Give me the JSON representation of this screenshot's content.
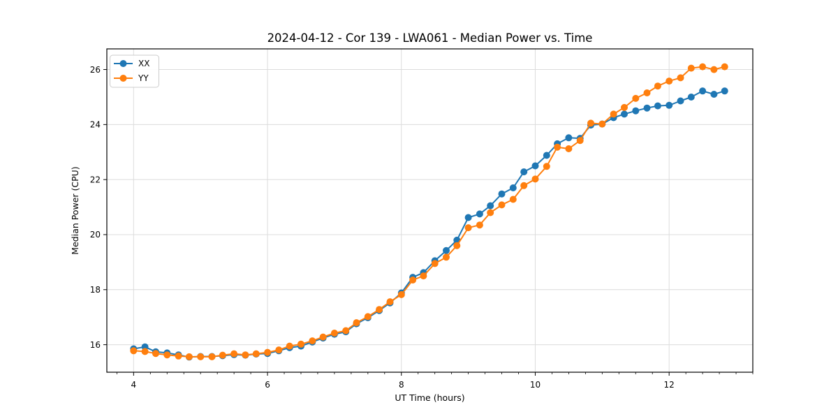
{
  "chart_data": {
    "type": "line",
    "title": "2024-04-12 - Cor 139 - LWA061 - Median Power vs. Time",
    "xlabel": "UT Time (hours)",
    "ylabel": "Median Power (CPU)",
    "xlim": [
      3.6,
      13.25
    ],
    "ylim": [
      15.0,
      26.75
    ],
    "xticks": [
      4,
      6,
      8,
      10,
      12
    ],
    "yticks": [
      16,
      18,
      20,
      22,
      24,
      26
    ],
    "x_minor_tick_step": 0.25,
    "grid": true,
    "legend_position": "upper-left",
    "x": [
      4.0,
      4.17,
      4.33,
      4.5,
      4.67,
      4.83,
      5.0,
      5.17,
      5.33,
      5.5,
      5.67,
      5.83,
      6.0,
      6.17,
      6.33,
      6.5,
      6.67,
      6.83,
      7.0,
      7.17,
      7.33,
      7.5,
      7.67,
      7.83,
      8.0,
      8.17,
      8.33,
      8.5,
      8.67,
      8.83,
      9.0,
      9.17,
      9.33,
      9.5,
      9.67,
      9.83,
      10.0,
      10.17,
      10.33,
      10.5,
      10.67,
      10.83,
      11.0,
      11.17,
      11.33,
      11.5,
      11.67,
      11.83,
      12.0,
      12.17,
      12.33,
      12.5,
      12.67,
      12.83
    ],
    "series": [
      {
        "name": "XX",
        "color": "#1f77b4",
        "values": [
          15.85,
          15.92,
          15.74,
          15.7,
          15.63,
          15.55,
          15.57,
          15.57,
          15.6,
          15.64,
          15.62,
          15.66,
          15.68,
          15.78,
          15.89,
          15.95,
          16.1,
          16.24,
          16.38,
          16.47,
          16.76,
          16.98,
          17.24,
          17.52,
          17.88,
          18.45,
          18.62,
          19.05,
          19.42,
          19.8,
          20.62,
          20.75,
          21.05,
          21.48,
          21.7,
          22.28,
          22.5,
          22.88,
          23.3,
          23.52,
          23.5,
          23.98,
          24.02,
          24.25,
          24.38,
          24.5,
          24.6,
          24.68,
          24.7,
          24.86,
          25.0,
          25.22,
          25.1,
          25.22
        ]
      },
      {
        "name": "YY",
        "color": "#ff7f0e",
        "values": [
          15.78,
          15.75,
          15.68,
          15.63,
          15.59,
          15.56,
          15.56,
          15.56,
          15.62,
          15.67,
          15.63,
          15.67,
          15.72,
          15.81,
          15.95,
          16.02,
          16.14,
          16.28,
          16.42,
          16.51,
          16.8,
          17.02,
          17.28,
          17.56,
          17.82,
          18.35,
          18.5,
          18.95,
          19.18,
          19.6,
          20.25,
          20.35,
          20.8,
          21.08,
          21.28,
          21.78,
          22.02,
          22.48,
          23.18,
          23.12,
          23.42,
          24.05,
          24.02,
          24.38,
          24.62,
          24.95,
          25.15,
          25.4,
          25.58,
          25.7,
          26.05,
          26.1,
          26.0,
          26.1
        ]
      }
    ]
  },
  "colors": {
    "background": "#ffffff",
    "grid": "#dcdcdc",
    "spine": "#000000",
    "text": "#000000",
    "legend_border": "#cccccc"
  }
}
